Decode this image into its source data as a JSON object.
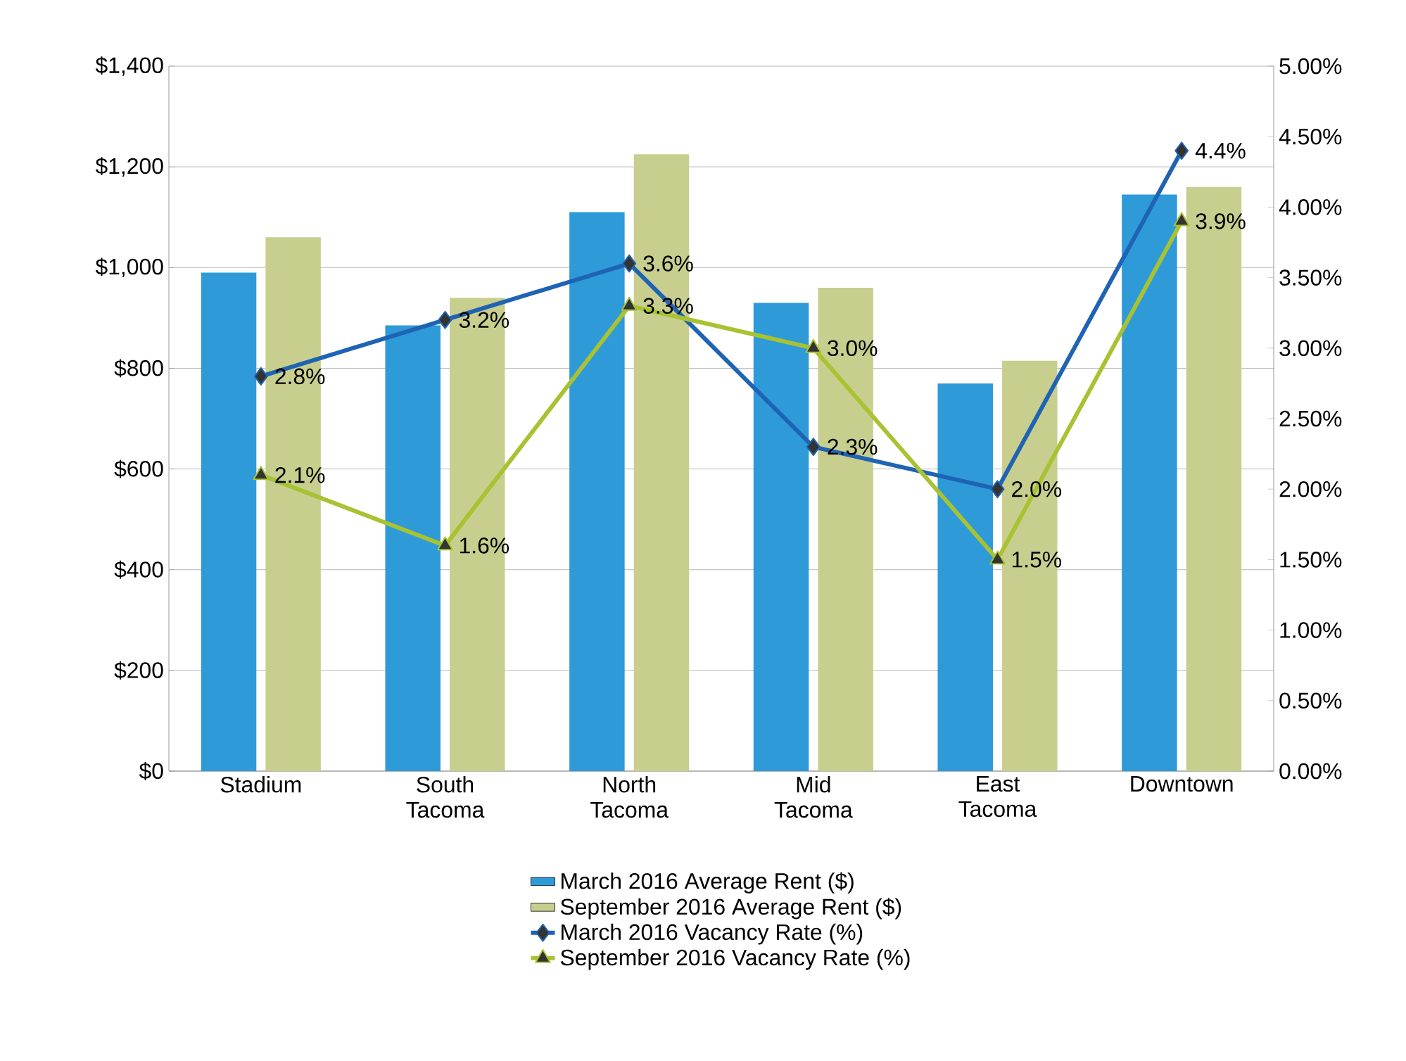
{
  "chart_data": {
    "type": "bar",
    "categories": [
      "Stadium",
      "South Tacoma",
      "North Tacoma",
      "Mid Tacoma",
      "East Tacoma",
      "Downtown"
    ],
    "series": [
      {
        "name": "March 2016 Average Rent ($)",
        "color": "#2e9ad8",
        "values": [
          990,
          885,
          1110,
          930,
          770,
          1145
        ]
      },
      {
        "name": "September 2016 Average Rent ($)",
        "color": "#c8cf8e",
        "values": [
          1060,
          940,
          1225,
          960,
          815,
          1160
        ]
      },
      {
        "name": "March 2016 Vacancy Rate (%)",
        "type": "line",
        "axis": "y2",
        "marker": "diamond",
        "color": "#1f64b4",
        "values": [
          2.8,
          3.2,
          3.6,
          2.3,
          2.0,
          4.4
        ],
        "value_labels": [
          "2.8%",
          "3.2%",
          "3.6%",
          "2.3%",
          "2.0%",
          "4.4%"
        ]
      },
      {
        "name": "September 2016 Vacancy Rate (%)",
        "type": "line",
        "axis": "y2",
        "marker": "triangle",
        "color": "#a8c232",
        "values": [
          2.1,
          1.6,
          3.3,
          3.0,
          1.5,
          3.9
        ],
        "value_labels": [
          "2.1%",
          "1.6%",
          "3.3%",
          "3.0%",
          "1.5%",
          "3.9%"
        ]
      }
    ],
    "ylim": [
      0,
      1400
    ],
    "yticks": [
      {
        "value": 0,
        "label": "$0"
      },
      {
        "value": 200,
        "label": "$200"
      },
      {
        "value": 400,
        "label": "$400"
      },
      {
        "value": 600,
        "label": "$600"
      },
      {
        "value": 800,
        "label": "$800"
      },
      {
        "value": 1000,
        "label": "$1,000"
      },
      {
        "value": 1200,
        "label": "$1,200"
      },
      {
        "value": 1400,
        "label": "$1,400"
      }
    ],
    "y2lim": [
      0,
      5
    ],
    "y2ticks": [
      {
        "value": 0,
        "label": "0.00%"
      },
      {
        "value": 0.5,
        "label": "0.50%"
      },
      {
        "value": 1,
        "label": "1.00%"
      },
      {
        "value": 1.5,
        "label": "1.50%"
      },
      {
        "value": 2,
        "label": "2.00%"
      },
      {
        "value": 2.5,
        "label": "2.50%"
      },
      {
        "value": 3,
        "label": "3.00%"
      },
      {
        "value": 3.5,
        "label": "3.50%"
      },
      {
        "value": 4,
        "label": "4.00%"
      },
      {
        "value": 4.5,
        "label": "4.50%"
      },
      {
        "value": 5,
        "label": "5.00%"
      }
    ],
    "grid": "y",
    "legend": "bottom",
    "line_style": "solid"
  }
}
